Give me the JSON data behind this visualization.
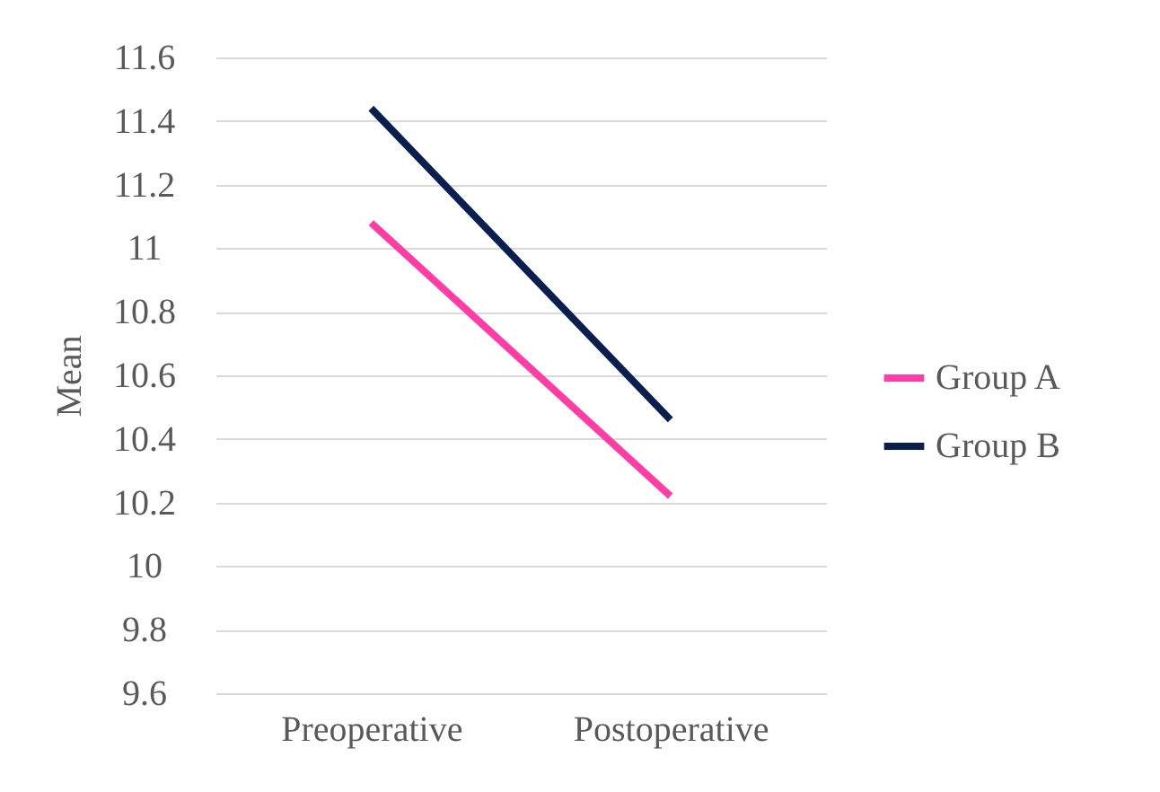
{
  "chart_data": {
    "type": "line",
    "ylabel": "Mean",
    "categories": [
      "Preoperative",
      "Postoperative"
    ],
    "series": [
      {
        "name": "Group A",
        "color": "#ff3ea5",
        "values": [
          11.08,
          10.22
        ]
      },
      {
        "name": "Group B",
        "color": "#0b1f4f",
        "values": [
          11.44,
          10.46
        ]
      }
    ],
    "ylim": [
      9.6,
      11.6
    ],
    "yticks": [
      9.6,
      9.8,
      10,
      10.2,
      10.4,
      10.6,
      10.8,
      11,
      11.2,
      11.4,
      11.6
    ],
    "grid": "y",
    "legend": "right",
    "marker": "none"
  }
}
